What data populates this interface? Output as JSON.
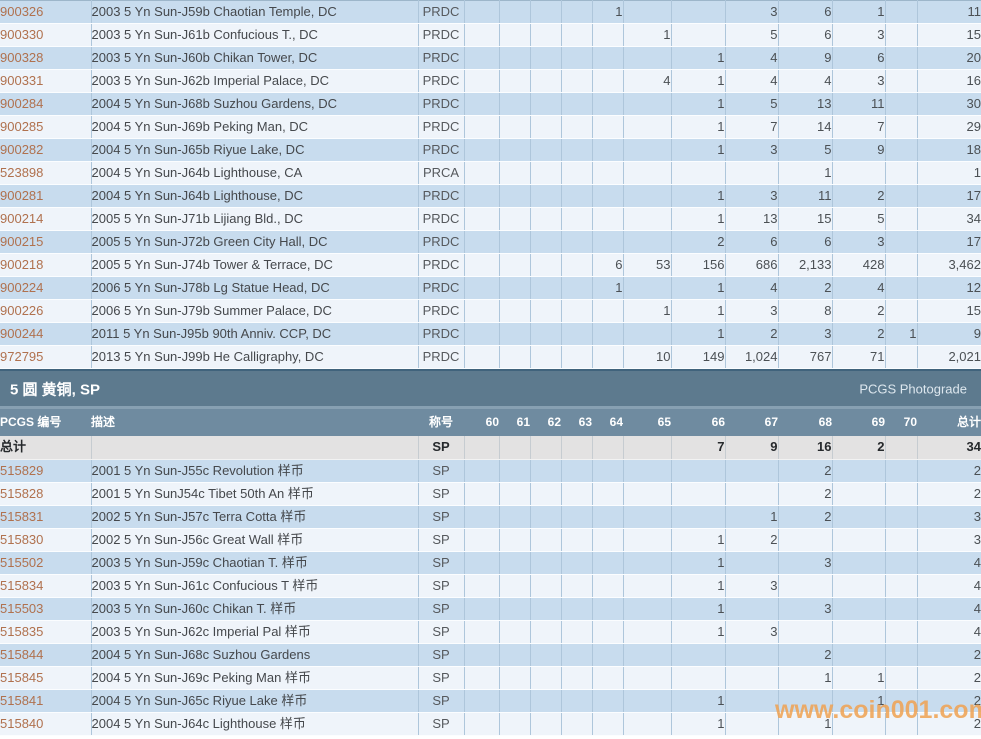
{
  "grades": [
    "60",
    "61",
    "62",
    "63",
    "64",
    "65",
    "66",
    "67",
    "68",
    "69",
    "70"
  ],
  "section": {
    "title": "5 圆 黄铜, SP",
    "photograde_label": "PCGS Photograde"
  },
  "header": {
    "pcgs": "PCGS 编号",
    "desc": "描述",
    "desig": "称号",
    "total": "总计"
  },
  "table1": {
    "rows": [
      {
        "pcgs": "900326",
        "desc": "2003 5 Yn Sun-J59b Chaotian Temple, DC",
        "desig": "PRDC",
        "g": {
          "64": "1",
          "67": "3",
          "68": "6",
          "69": "1"
        },
        "total": "11"
      },
      {
        "pcgs": "900330",
        "desc": "2003 5 Yn Sun-J61b Confucious T., DC",
        "desig": "PRDC",
        "g": {
          "65": "1",
          "67": "5",
          "68": "6",
          "69": "3"
        },
        "total": "15"
      },
      {
        "pcgs": "900328",
        "desc": "2003 5 Yn Sun-J60b Chikan Tower, DC",
        "desig": "PRDC",
        "g": {
          "66": "1",
          "67": "4",
          "68": "9",
          "69": "6"
        },
        "total": "20"
      },
      {
        "pcgs": "900331",
        "desc": "2003 5 Yn Sun-J62b Imperial Palace, DC",
        "desig": "PRDC",
        "g": {
          "65": "4",
          "66": "1",
          "67": "4",
          "68": "4",
          "69": "3"
        },
        "total": "16"
      },
      {
        "pcgs": "900284",
        "desc": "2004 5 Yn Sun-J68b Suzhou Gardens, DC",
        "desig": "PRDC",
        "g": {
          "66": "1",
          "67": "5",
          "68": "13",
          "69": "11"
        },
        "total": "30"
      },
      {
        "pcgs": "900285",
        "desc": "2004 5 Yn Sun-J69b Peking Man, DC",
        "desig": "PRDC",
        "g": {
          "66": "1",
          "67": "7",
          "68": "14",
          "69": "7"
        },
        "total": "29"
      },
      {
        "pcgs": "900282",
        "desc": "2004 5 Yn Sun-J65b Riyue Lake, DC",
        "desig": "PRDC",
        "g": {
          "66": "1",
          "67": "3",
          "68": "5",
          "69": "9"
        },
        "total": "18"
      },
      {
        "pcgs": "523898",
        "desc": "2004 5 Yn Sun-J64b Lighthouse, CA",
        "desig": "PRCA",
        "g": {
          "68": "1"
        },
        "total": "1"
      },
      {
        "pcgs": "900281",
        "desc": "2004 5 Yn Sun-J64b Lighthouse, DC",
        "desig": "PRDC",
        "g": {
          "66": "1",
          "67": "3",
          "68": "11",
          "69": "2"
        },
        "total": "17"
      },
      {
        "pcgs": "900214",
        "desc": "2005 5 Yn Sun-J71b Lijiang Bld., DC",
        "desig": "PRDC",
        "g": {
          "66": "1",
          "67": "13",
          "68": "15",
          "69": "5"
        },
        "total": "34"
      },
      {
        "pcgs": "900215",
        "desc": "2005 5 Yn Sun-J72b Green City Hall, DC",
        "desig": "PRDC",
        "g": {
          "66": "2",
          "67": "6",
          "68": "6",
          "69": "3"
        },
        "total": "17"
      },
      {
        "pcgs": "900218",
        "desc": "2005 5 Yn Sun-J74b Tower & Terrace, DC",
        "desig": "PRDC",
        "g": {
          "64": "6",
          "65": "53",
          "66": "156",
          "67": "686",
          "68": "2,133",
          "69": "428"
        },
        "total": "3,462"
      },
      {
        "pcgs": "900224",
        "desc": "2006 5 Yn Sun-J78b Lg Statue Head, DC",
        "desig": "PRDC",
        "g": {
          "64": "1",
          "66": "1",
          "67": "4",
          "68": "2",
          "69": "4"
        },
        "total": "12"
      },
      {
        "pcgs": "900226",
        "desc": "2006 5 Yn Sun-J79b Summer Palace, DC",
        "desig": "PRDC",
        "g": {
          "65": "1",
          "66": "1",
          "67": "3",
          "68": "8",
          "69": "2"
        },
        "total": "15"
      },
      {
        "pcgs": "900244",
        "desc": "2011 5 Yn Sun-J95b 90th Anniv. CCP, DC",
        "desig": "PRDC",
        "g": {
          "66": "1",
          "67": "2",
          "68": "3",
          "69": "2",
          "70": "1"
        },
        "total": "9"
      },
      {
        "pcgs": "972795",
        "desc": "2013 5 Yn Sun-J99b He Calligraphy, DC",
        "desig": "PRDC",
        "g": {
          "65": "10",
          "66": "149",
          "67": "1,024",
          "68": "767",
          "69": "71"
        },
        "total": "2,021"
      }
    ]
  },
  "table2": {
    "totals": {
      "label": "总计",
      "desig": "SP",
      "g": {
        "66": "7",
        "67": "9",
        "68": "16",
        "69": "2"
      },
      "total": "34"
    },
    "rows": [
      {
        "pcgs": "515829",
        "desc": "2001 5 Yn Sun-J55c Revolution 样币",
        "desig": "SP",
        "g": {
          "68": "2"
        },
        "total": "2"
      },
      {
        "pcgs": "515828",
        "desc": "2001 5 Yn SunJ54c Tibet 50th An 样币",
        "desig": "SP",
        "g": {
          "68": "2"
        },
        "total": "2"
      },
      {
        "pcgs": "515831",
        "desc": "2002 5 Yn Sun-J57c Terra Cotta 样币",
        "desig": "SP",
        "g": {
          "67": "1",
          "68": "2"
        },
        "total": "3"
      },
      {
        "pcgs": "515830",
        "desc": "2002 5 Yn Sun-J56c Great Wall 样币",
        "desig": "SP",
        "g": {
          "66": "1",
          "67": "2"
        },
        "total": "3"
      },
      {
        "pcgs": "515502",
        "desc": "2003 5 Yn Sun-J59c Chaotian T. 样币",
        "desig": "SP",
        "g": {
          "66": "1",
          "68": "3"
        },
        "total": "4"
      },
      {
        "pcgs": "515834",
        "desc": "2003 5 Yn Sun-J61c Confucious T 样币",
        "desig": "SP",
        "g": {
          "66": "1",
          "67": "3"
        },
        "total": "4"
      },
      {
        "pcgs": "515503",
        "desc": "2003 5 Yn Sun-J60c Chikan T. 样币",
        "desig": "SP",
        "g": {
          "66": "1",
          "68": "3"
        },
        "total": "4"
      },
      {
        "pcgs": "515835",
        "desc": "2003 5 Yn Sun-J62c Imperial Pal 样币",
        "desig": "SP",
        "g": {
          "66": "1",
          "67": "3"
        },
        "total": "4"
      },
      {
        "pcgs": "515844",
        "desc": "2004 5 Yn Sun-J68c Suzhou Gardens",
        "desig": "SP",
        "g": {
          "68": "2"
        },
        "total": "2"
      },
      {
        "pcgs": "515845",
        "desc": "2004 5 Yn Sun-J69c Peking Man 样币",
        "desig": "SP",
        "g": {
          "68": "1",
          "69": "1"
        },
        "total": "2"
      },
      {
        "pcgs": "515841",
        "desc": "2004 5 Yn Sun-J65c Riyue Lake 样币",
        "desig": "SP",
        "g": {
          "66": "1",
          "69": "1"
        },
        "total": "2"
      },
      {
        "pcgs": "515840",
        "desc": "2004 5 Yn Sun-J64c Lighthouse 样币",
        "desig": "SP",
        "g": {
          "66": "1",
          "68": "1"
        },
        "total": "2"
      }
    ]
  },
  "watermark": "www.coin001.com",
  "colors": {
    "row_blue": "#c8dcee",
    "row_white": "#eff4fa",
    "section_band": "#5d7a8e",
    "header_band": "#6f8ba0",
    "pcgs_number": "#b0714e",
    "totals_bg": "#e3e2e2",
    "separator": "#40637c",
    "watermark": "#f0a251"
  }
}
